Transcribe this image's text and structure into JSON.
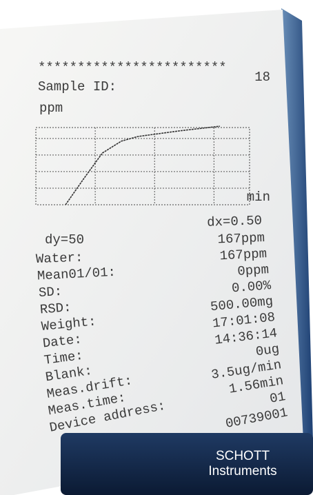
{
  "header": {
    "stars": "************************",
    "sample_label": "Sample ID:",
    "sample_id": "18"
  },
  "plot": {
    "y_label": "ppm",
    "x_label": "min",
    "dy": "dy=50",
    "dx": "dx=0.50",
    "x": [
      0.25,
      0.4,
      0.56,
      0.72,
      0.86,
      1.21,
      1.55
    ],
    "y": [
      0,
      77,
      156,
      192,
      206,
      223,
      237
    ],
    "xlim": [
      0,
      1.8
    ],
    "ylim": [
      0,
      233
    ],
    "xgrid": [
      0.5,
      1,
      1.5
    ],
    "ygrid": [
      50,
      100,
      150,
      200
    ]
  },
  "labels": [
    "Water:",
    "Mean01/01:",
    "SD:",
    "RSD:",
    "Weight:",
    "Date:",
    "Time:",
    "Blank:",
    "Meas.drift:",
    "Meas.time:",
    "Device address:"
  ],
  "values": [
    "167ppm",
    "167ppm",
    "0ppm",
    "0.00%",
    "500.00mg",
    "17:01:08",
    "14:36:14",
    "0ug",
    "3.5ug/min",
    "1.56min",
    "01",
    "00739001"
  ],
  "brand": {
    "name": "SCHOTT",
    "sub": "Instruments"
  }
}
